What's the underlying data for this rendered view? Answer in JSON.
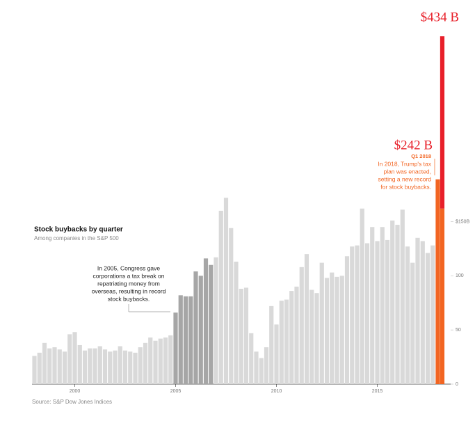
{
  "chart_data": {
    "type": "bar",
    "title": "Stock buybacks by quarter",
    "subtitle": "Among companies in the S&P 500",
    "source": "Source: S&P Dow Jones Indices",
    "categories": [
      null,
      null,
      null,
      null,
      null,
      null,
      null,
      null,
      "2000",
      null,
      null,
      null,
      null,
      null,
      null,
      null,
      null,
      null,
      null,
      null,
      null,
      null,
      null,
      null,
      null,
      null,
      null,
      null,
      "2005",
      null,
      null,
      null,
      null,
      null,
      null,
      null,
      null,
      null,
      null,
      null,
      null,
      null,
      null,
      null,
      null,
      null,
      null,
      null,
      "2010",
      null,
      null,
      null,
      null,
      null,
      null,
      null,
      null,
      null,
      null,
      null,
      null,
      null,
      null,
      null,
      null,
      null,
      null,
      null,
      "2015",
      null,
      null,
      null,
      null,
      null,
      null,
      null,
      null,
      null,
      null,
      null,
      null
    ],
    "values": [
      26,
      29,
      38,
      33,
      34,
      32,
      30,
      46,
      48,
      36,
      31,
      33,
      33,
      35,
      32,
      30,
      31,
      35,
      31,
      30,
      29,
      34,
      38,
      43,
      40,
      42,
      43,
      45,
      66,
      82,
      81,
      81,
      104,
      100,
      116,
      110,
      117,
      160,
      172,
      144,
      113,
      88,
      89,
      47,
      30,
      24,
      34,
      72,
      55,
      77,
      78,
      86,
      90,
      108,
      120,
      87,
      84,
      112,
      98,
      103,
      99,
      100,
      118,
      127,
      128,
      162,
      130,
      145,
      132,
      145,
      133,
      151,
      147,
      161,
      127,
      112,
      135,
      132,
      121,
      128,
      189
    ],
    "colors": [
      "#d9d9d9",
      "#d9d9d9",
      "#d9d9d9",
      "#d9d9d9",
      "#d9d9d9",
      "#d9d9d9",
      "#d9d9d9",
      "#d9d9d9",
      "#d9d9d9",
      "#d9d9d9",
      "#d9d9d9",
      "#d9d9d9",
      "#d9d9d9",
      "#d9d9d9",
      "#d9d9d9",
      "#d9d9d9",
      "#d9d9d9",
      "#d9d9d9",
      "#d9d9d9",
      "#d9d9d9",
      "#d9d9d9",
      "#d9d9d9",
      "#d9d9d9",
      "#d9d9d9",
      "#d9d9d9",
      "#d9d9d9",
      "#d9d9d9",
      "#d9d9d9",
      "#a6a6a6",
      "#a6a6a6",
      "#a6a6a6",
      "#a6a6a6",
      "#a6a6a6",
      "#a6a6a6",
      "#a6a6a6",
      "#a6a6a6",
      "#d9d9d9",
      "#d9d9d9",
      "#d9d9d9",
      "#d9d9d9",
      "#d9d9d9",
      "#d9d9d9",
      "#d9d9d9",
      "#d9d9d9",
      "#d9d9d9",
      "#d9d9d9",
      "#d9d9d9",
      "#d9d9d9",
      "#d9d9d9",
      "#d9d9d9",
      "#d9d9d9",
      "#d9d9d9",
      "#d9d9d9",
      "#d9d9d9",
      "#d9d9d9",
      "#d9d9d9",
      "#d9d9d9",
      "#d9d9d9",
      "#d9d9d9",
      "#d9d9d9",
      "#d9d9d9",
      "#d9d9d9",
      "#d9d9d9",
      "#d9d9d9",
      "#d9d9d9",
      "#d9d9d9",
      "#d9d9d9",
      "#d9d9d9",
      "#d9d9d9",
      "#d9d9d9",
      "#d9d9d9",
      "#d9d9d9",
      "#d9d9d9",
      "#d9d9d9",
      "#d9d9d9",
      "#d9d9d9",
      "#d9d9d9",
      "#d9d9d9",
      "#d9d9d9",
      "#d9d9d9",
      "#f26522"
    ],
    "projection": {
      "values": [
        162,
        159
      ],
      "colors": [
        "#f26522",
        "#e8202a"
      ]
    },
    "ylim": [
      0,
      350
    ],
    "yticks": [
      0,
      50,
      100,
      {
        "value": 150,
        "label": "$150B"
      }
    ],
    "annotations": {
      "congress": [
        "In 2005, Congress gave",
        "corporations a tax break on",
        "repatriating money from",
        "overseas, resulting in record",
        "stock buybacks."
      ],
      "q1_value": "$242 B",
      "q1_label": "Q1 2018",
      "trump": [
        "In 2018, Trump's tax",
        "plan was enacted,",
        "setting a new record",
        "for stock buybacks."
      ],
      "total": "$434 B"
    }
  }
}
